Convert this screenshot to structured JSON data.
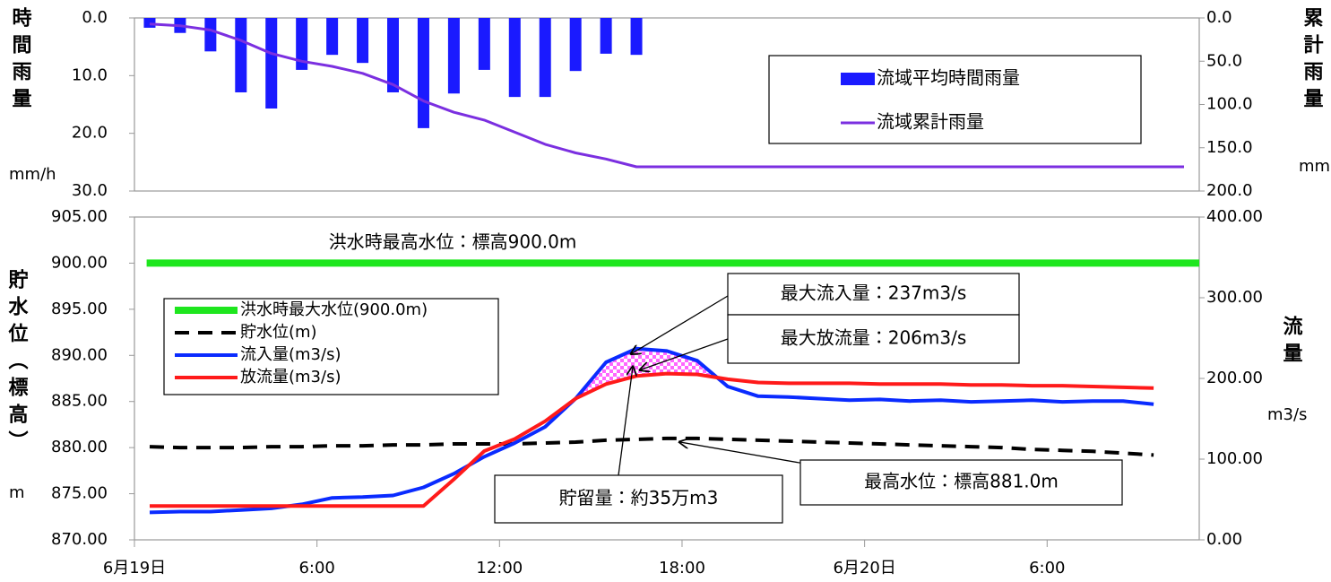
{
  "chart_data": [
    {
      "type": "bar",
      "y_label": "時間雨量",
      "y_unit": "mm/h",
      "y2_label": "累計雨量",
      "y2_unit": "mm",
      "xlim": [
        0,
        35
      ],
      "ylim": [
        0,
        30
      ],
      "y_inverted": true,
      "yticks": [
        {
          "value": 0,
          "label": "0.0"
        },
        {
          "value": 10,
          "label": "10.0"
        },
        {
          "value": 20,
          "label": "20.0"
        },
        {
          "value": 30,
          "label": "30.0"
        }
      ],
      "y2lim": [
        0,
        200
      ],
      "y2_inverted": true,
      "y2ticks": [
        {
          "value": 0,
          "label": "0.0"
        },
        {
          "value": 50,
          "label": "50.0"
        },
        {
          "value": 100,
          "label": "100.0"
        },
        {
          "value": 150,
          "label": "150.0"
        },
        {
          "value": 200,
          "label": "200.0"
        }
      ],
      "legend": "upper right",
      "series": [
        {
          "name": "流域平均時間雨量",
          "color": "#1a1aff",
          "x": [
            0.5,
            1.5,
            2.5,
            3.5,
            4.5,
            5.5,
            6.5,
            7.5,
            8.5,
            9.5,
            10.5,
            11.5,
            12.5,
            13.5,
            14.5,
            15.5,
            16.5
          ],
          "values": [
            1.7,
            2.6,
            5.8,
            12.9,
            15.7,
            9.0,
            6.4,
            7.8,
            12.9,
            19.1,
            13.1,
            9.0,
            13.7,
            13.7,
            9.2,
            6.2,
            6.4
          ]
        },
        {
          "name": "流域累計雨量",
          "type": "line",
          "axis": "y2",
          "color": "#7b2fe0",
          "x": [
            0.5,
            1.5,
            2.5,
            3.5,
            4.5,
            5.5,
            6.5,
            7.5,
            8.5,
            9.5,
            10.5,
            11.5,
            12.5,
            13.5,
            14.5,
            15.5,
            16.5,
            34.5
          ],
          "values": [
            7,
            9,
            14,
            26,
            41,
            50,
            56,
            64,
            77,
            96,
            109,
            118,
            132,
            146,
            156,
            163,
            172,
            172
          ]
        }
      ]
    },
    {
      "type": "line",
      "y_label": "貯水位（標高）",
      "y_unit": "m",
      "y2_label": "流量",
      "y2_unit": "m3/s",
      "xlim": [
        0,
        35
      ],
      "xticks": [
        {
          "value": 0,
          "label": "6月19日"
        },
        {
          "value": 6,
          "label": "6:00"
        },
        {
          "value": 12,
          "label": "12:00"
        },
        {
          "value": 18,
          "label": "18:00"
        },
        {
          "value": 24,
          "label": "6月20日"
        },
        {
          "value": 30,
          "label": "6:00"
        }
      ],
      "ylim": [
        870,
        905
      ],
      "yticks": [
        {
          "value": 870,
          "label": "870.00"
        },
        {
          "value": 875,
          "label": "875.00"
        },
        {
          "value": 880,
          "label": "880.00"
        },
        {
          "value": 885,
          "label": "885.00"
        },
        {
          "value": 890,
          "label": "890.00"
        },
        {
          "value": 895,
          "label": "895.00"
        },
        {
          "value": 900,
          "label": "900.00"
        },
        {
          "value": 905,
          "label": "905.00"
        }
      ],
      "y2lim": [
        0,
        400
      ],
      "y2ticks": [
        {
          "value": 0,
          "label": "0.00"
        },
        {
          "value": 100,
          "label": "100.00"
        },
        {
          "value": 200,
          "label": "200.00"
        },
        {
          "value": 300,
          "label": "300.00"
        },
        {
          "value": 400,
          "label": "400.00"
        }
      ],
      "legend": "upper left",
      "series": [
        {
          "name": "洪水時最大水位(900.0m)",
          "color": "#1ee61e",
          "width": 8,
          "x": [
            0.4,
            35
          ],
          "values": [
            900,
            900
          ]
        },
        {
          "name": "貯水位(m)",
          "color": "#000000",
          "width": 4,
          "dashed": true,
          "x": [
            0.5,
            1.5,
            2.5,
            3.5,
            4.5,
            5.5,
            6.5,
            7.5,
            8.5,
            9.5,
            10.5,
            11.5,
            12.5,
            13.5,
            14.5,
            15.5,
            16.5,
            17.5,
            18.5,
            19.5,
            20.5,
            21.5,
            22.5,
            23.5,
            24.5,
            25.5,
            26.5,
            27.5,
            28.5,
            29.5,
            30.5,
            31.5,
            32.5,
            33.5
          ],
          "values": [
            880.1,
            880.0,
            880.0,
            880.0,
            880.1,
            880.1,
            880.2,
            880.2,
            880.3,
            880.3,
            880.4,
            880.4,
            880.4,
            880.5,
            880.6,
            880.8,
            880.9,
            881.0,
            881.0,
            880.9,
            880.8,
            880.7,
            880.6,
            880.5,
            880.4,
            880.3,
            880.2,
            880.1,
            880.0,
            879.8,
            879.7,
            879.6,
            879.4,
            879.2
          ]
        },
        {
          "name": "流入量(m3/s)",
          "color": "#0a2bff",
          "width": 4,
          "axis": "y2",
          "x": [
            0.5,
            1.5,
            2.5,
            3.5,
            4.5,
            5.5,
            6.5,
            7.5,
            8.5,
            9.5,
            10.5,
            11.5,
            12.5,
            13.5,
            14.5,
            15.5,
            16.5,
            17.5,
            18.5,
            19.5,
            20.5,
            21.5,
            22.5,
            23.5,
            24.5,
            25.5,
            26.5,
            27.5,
            28.5,
            29.5,
            30.5,
            31.5,
            32.5,
            33.5
          ],
          "values": [
            34,
            35,
            35,
            37,
            39,
            44,
            52,
            53,
            55,
            65,
            82,
            103,
            120,
            140,
            175,
            220,
            237,
            234,
            222,
            190,
            178,
            177,
            175,
            173,
            174,
            172,
            173,
            171,
            172,
            173,
            171,
            172,
            172,
            168
          ]
        },
        {
          "name": "放流量(m3/s)",
          "color": "#ff1a1a",
          "width": 4,
          "axis": "y2",
          "x": [
            0.5,
            1.5,
            2.5,
            3.5,
            4.5,
            5.5,
            6.5,
            7.5,
            8.5,
            9.5,
            10.5,
            11.5,
            12.5,
            13.5,
            14.5,
            15.5,
            16.5,
            17.5,
            18.5,
            19.5,
            20.5,
            21.5,
            22.5,
            23.5,
            24.5,
            25.5,
            26.5,
            27.5,
            28.5,
            29.5,
            30.5,
            31.5,
            32.5,
            33.5
          ],
          "values": [
            42,
            42,
            42,
            42,
            42,
            42,
            42,
            42,
            42,
            42,
            75,
            110,
            125,
            147,
            175,
            193,
            203,
            206,
            205,
            199,
            195,
            194,
            194,
            194,
            193,
            193,
            193,
            192,
            192,
            191,
            191,
            190,
            189,
            188
          ]
        }
      ],
      "annotations": [
        {
          "text": "洪水時最高水位：標高900.0m",
          "color": "#1ee61e"
        },
        {
          "text": "最大流入量：237m3/s",
          "color": "#1a6fc0"
        },
        {
          "text": "最大放流量：206m3/s",
          "color": "#ff1a1a"
        },
        {
          "text": "最高水位：標高881.0m",
          "color": "#000000"
        },
        {
          "text": "貯留量：約35万m3",
          "color": "#e61ee6"
        }
      ]
    }
  ]
}
